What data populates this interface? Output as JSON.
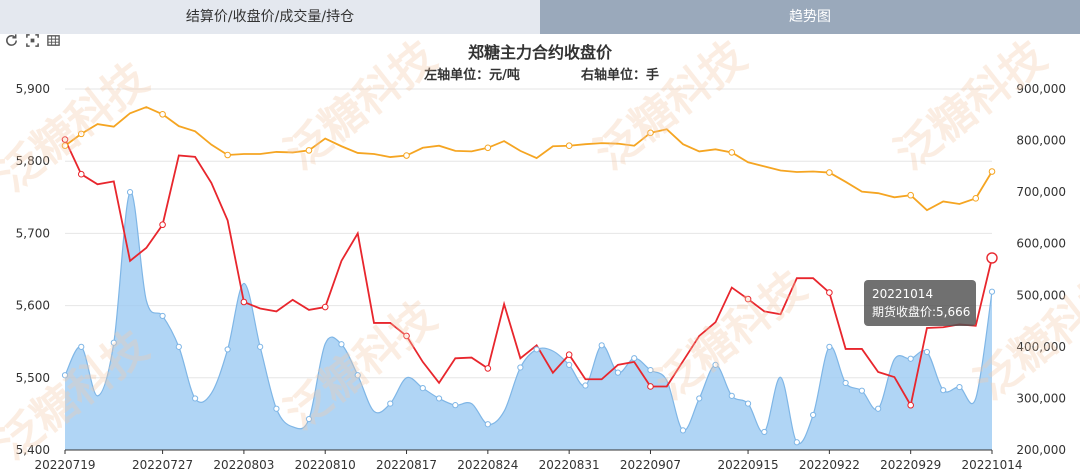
{
  "tabs": [
    {
      "label": "结算价/收盘价/成交量/持仓",
      "active": false
    },
    {
      "label": "趋势图",
      "active": true
    }
  ],
  "toolbox": {
    "icons": [
      "restore-icon",
      "data-zoom-icon",
      "data-view-icon"
    ]
  },
  "watermark": {
    "text": "泛糖科技"
  },
  "tooltip": {
    "date": "20221014",
    "text": "期货收盘价:5,666"
  },
  "chart_data": {
    "type": "line",
    "title": "郑糖主力合约收盘价",
    "left_unit": "左轴单位：元/吨",
    "right_unit": "右轴单位：手",
    "y_left": {
      "min": 5400,
      "max": 5900,
      "ticks": [
        "5,400",
        "5,500",
        "5,600",
        "5,700",
        "5,800",
        "5,900"
      ]
    },
    "y_right": {
      "min": 200000,
      "max": 900000,
      "ticks": [
        "200,000",
        "300,000",
        "400,000",
        "500,000",
        "600,000",
        "700,000",
        "800,000",
        "900,000"
      ]
    },
    "x_labels": [
      "20220719",
      "20220727",
      "20220803",
      "20220810",
      "20220817",
      "20220824",
      "20220831",
      "20220907",
      "20220915",
      "20220922",
      "20220929",
      "20221014"
    ],
    "x_label_indices": [
      0,
      6,
      11,
      16,
      21,
      26,
      31,
      36,
      42,
      47,
      52,
      57
    ],
    "grid": true,
    "series": [
      {
        "name": "期货收盘价",
        "axis": "left",
        "color": "#e8262d",
        "marker_indices": [
          0,
          1,
          6,
          11,
          16,
          21,
          26,
          31,
          36,
          42,
          47,
          52,
          57
        ],
        "values": [
          5830,
          5782,
          5768,
          5772,
          5662,
          5680,
          5712,
          5808,
          5806,
          5770,
          5718,
          5605,
          5596,
          5592,
          5608,
          5594,
          5598,
          5662,
          5700,
          5576,
          5576,
          5558,
          5522,
          5493,
          5527,
          5528,
          5513,
          5602,
          5527,
          5545,
          5507,
          5532,
          5498,
          5498,
          5518,
          5522,
          5488,
          5488,
          5523,
          5558,
          5577,
          5625,
          5609,
          5592,
          5588,
          5638,
          5638,
          5618,
          5540,
          5540,
          5508,
          5501,
          5462,
          5569,
          5570,
          5574,
          5572,
          5666
        ]
      },
      {
        "name": "成交量",
        "axis": "right",
        "type": "area",
        "color": "#9ccbf2",
        "marker_indices": [
          0,
          1,
          3,
          4,
          6,
          7,
          8,
          10,
          12,
          13,
          15,
          17,
          18,
          20,
          22,
          23,
          24,
          26,
          28,
          29,
          31,
          32,
          33,
          34,
          35,
          36,
          38,
          39,
          40,
          41,
          42,
          43,
          45,
          46,
          47,
          48,
          49,
          50,
          52,
          53,
          54,
          55,
          57
        ],
        "values": [
          345000,
          400000,
          305000,
          408000,
          700000,
          490000,
          460000,
          400000,
          300000,
          310000,
          395000,
          523000,
          400000,
          280000,
          245000,
          260000,
          406000,
          405000,
          345000,
          275000,
          290000,
          340000,
          320000,
          300000,
          287000,
          290000,
          250000,
          275000,
          360000,
          395000,
          392000,
          365000,
          325000,
          403000,
          350000,
          378000,
          355000,
          335000,
          238000,
          300000,
          365000,
          305000,
          290000,
          235000,
          341000,
          215000,
          268000,
          400000,
          330000,
          315000,
          280000,
          376000,
          377000,
          390000,
          316000,
          322000,
          300000,
          507000
        ]
      },
      {
        "name": "持仓",
        "axis": "right",
        "color": "#f5a522",
        "marker_indices": [
          0,
          1,
          6,
          10,
          15,
          21,
          26,
          31,
          36,
          41,
          47,
          52,
          56,
          57
        ],
        "values": [
          790000,
          813000,
          832000,
          827000,
          853000,
          865000,
          851000,
          828000,
          818000,
          792000,
          772000,
          774000,
          774000,
          778000,
          777000,
          781000,
          804000,
          789000,
          776000,
          774000,
          768000,
          771000,
          786000,
          790000,
          780000,
          779000,
          786000,
          799000,
          780000,
          766000,
          789000,
          790000,
          793000,
          795000,
          794000,
          790000,
          815000,
          822000,
          793000,
          779000,
          783000,
          777000,
          758000,
          750000,
          742000,
          739000,
          740000,
          738000,
          720000,
          701000,
          698000,
          690000,
          694000,
          665000,
          682000,
          677000,
          688000,
          740000
        ]
      }
    ]
  }
}
